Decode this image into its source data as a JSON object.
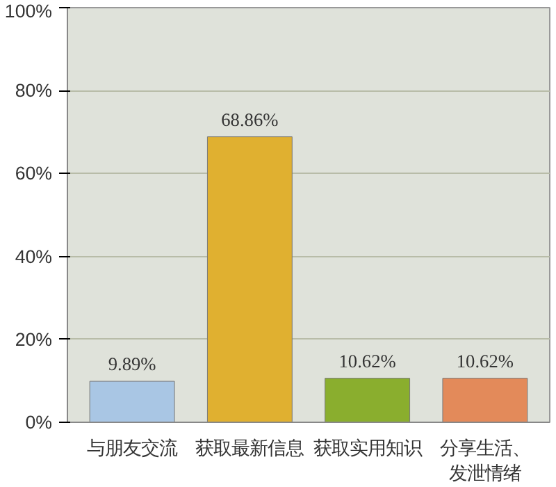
{
  "chart_data": {
    "type": "bar",
    "categories": [
      "与朋友交流",
      "获取最新信息",
      "获取实用知识",
      "分享生活、发泄情绪"
    ],
    "values": [
      9.89,
      68.86,
      10.62,
      10.62
    ],
    "colors": [
      "#a9c6e4",
      "#e0b030",
      "#8aae2e",
      "#e38a5a"
    ],
    "value_labels": [
      "9.89%",
      "68.86%",
      "10.62%",
      "10.62%"
    ],
    "ylim": [
      0,
      100
    ],
    "yticks": [
      {
        "value": 0,
        "label": "0%"
      },
      {
        "value": 20,
        "label": "20%"
      },
      {
        "value": 40,
        "label": "40%"
      },
      {
        "value": 60,
        "label": "60%"
      },
      {
        "value": 80,
        "label": "80%"
      },
      {
        "value": 100,
        "label": "100%"
      }
    ],
    "grid": "y"
  }
}
